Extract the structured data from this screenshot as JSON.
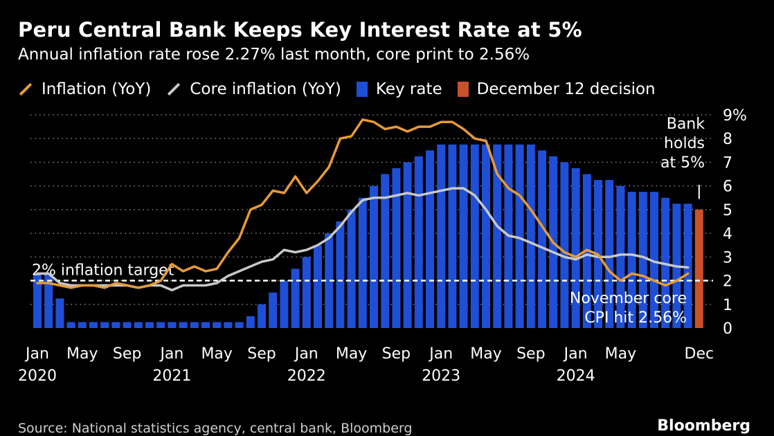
{
  "header": {
    "title": "Peru Central Bank Keeps Key Interest Rate at 5%",
    "subtitle": "Annual inflation rate rose 2.27% last month, core print to 2.56%"
  },
  "legend": {
    "items": [
      {
        "label": "Inflation (YoY)",
        "color": "#e69b38",
        "kind": "line"
      },
      {
        "label": "Core inflation (YoY)",
        "color": "#c8c8c8",
        "kind": "line"
      },
      {
        "label": "Key rate",
        "color": "#1f4fd6",
        "kind": "box"
      },
      {
        "label": "December 12 decision",
        "color": "#c8502a",
        "kind": "box"
      }
    ]
  },
  "annotations": {
    "target_label": "2% inflation target",
    "bank_holds": [
      "Bank",
      "holds",
      "at 5%"
    ],
    "core_note": [
      "November core",
      "CPI hit 2.56%"
    ]
  },
  "footer": {
    "source": "Source: National statistics agency, central bank, Bloomberg",
    "brand": "Bloomberg"
  },
  "chart_data": {
    "type": "bar",
    "x_start": "2020-01",
    "x_end": "2024-12",
    "ylim": [
      0,
      9
    ],
    "y_ticks": [
      "0",
      "1",
      "2",
      "3",
      "4",
      "5",
      "6",
      "7",
      "8",
      "9%"
    ],
    "x_ticks": [
      {
        "month": "Jan",
        "year": "2020"
      },
      {
        "month": "May",
        "year": ""
      },
      {
        "month": "Sep",
        "year": ""
      },
      {
        "month": "Jan",
        "year": "2021"
      },
      {
        "month": "May",
        "year": ""
      },
      {
        "month": "Sep",
        "year": ""
      },
      {
        "month": "Jan",
        "year": "2022"
      },
      {
        "month": "May",
        "year": ""
      },
      {
        "month": "Sep",
        "year": ""
      },
      {
        "month": "Jan",
        "year": "2023"
      },
      {
        "month": "May",
        "year": ""
      },
      {
        "month": "Sep",
        "year": ""
      },
      {
        "month": "Jan",
        "year": "2024"
      },
      {
        "month": "May",
        "year": ""
      },
      {
        "month": "Dec",
        "year": ""
      }
    ],
    "x_tick_index": [
      0,
      4,
      8,
      12,
      16,
      20,
      24,
      28,
      32,
      36,
      40,
      44,
      48,
      52,
      59
    ],
    "target": 2,
    "series": [
      {
        "name": "Key rate",
        "color": "#1f4fd6",
        "values": [
          2.25,
          2.25,
          1.25,
          0.25,
          0.25,
          0.25,
          0.25,
          0.25,
          0.25,
          0.25,
          0.25,
          0.25,
          0.25,
          0.25,
          0.25,
          0.25,
          0.25,
          0.25,
          0.25,
          0.5,
          1.0,
          1.5,
          2.0,
          2.5,
          3.0,
          3.5,
          4.0,
          4.5,
          5.0,
          5.5,
          6.0,
          6.5,
          6.75,
          7.0,
          7.25,
          7.5,
          7.75,
          7.75,
          7.75,
          7.75,
          7.75,
          7.75,
          7.75,
          7.75,
          7.75,
          7.5,
          7.25,
          7.0,
          6.75,
          6.5,
          6.25,
          6.25,
          6.0,
          5.75,
          5.75,
          5.75,
          5.5,
          5.25,
          5.25,
          5.0
        ]
      },
      {
        "name": "December 12 decision",
        "color": "#c8502a",
        "index": 59,
        "value": 5.0
      },
      {
        "name": "Inflation (YoY)",
        "color": "#e69b38",
        "values": [
          1.9,
          1.9,
          1.8,
          1.7,
          1.8,
          1.8,
          1.7,
          1.9,
          1.8,
          1.7,
          1.8,
          2.0,
          2.7,
          2.4,
          2.6,
          2.4,
          2.5,
          3.2,
          3.8,
          5.0,
          5.2,
          5.8,
          5.7,
          6.4,
          5.7,
          6.2,
          6.8,
          8.0,
          8.1,
          8.8,
          8.7,
          8.4,
          8.5,
          8.3,
          8.5,
          8.5,
          8.7,
          8.7,
          8.4,
          8.0,
          7.9,
          6.5,
          5.9,
          5.6,
          5.0,
          4.3,
          3.6,
          3.2,
          3.0,
          3.3,
          3.1,
          2.4,
          2.0,
          2.3,
          2.2,
          2.0,
          1.8,
          2.0,
          2.3
        ]
      },
      {
        "name": "Core inflation (YoY)",
        "color": "#c8c8c8",
        "values": [
          2.3,
          2.3,
          1.9,
          1.8,
          1.8,
          1.8,
          1.8,
          1.8,
          1.8,
          1.7,
          1.8,
          1.8,
          1.6,
          1.8,
          1.8,
          1.8,
          1.9,
          2.2,
          2.4,
          2.6,
          2.8,
          2.9,
          3.3,
          3.2,
          3.3,
          3.5,
          3.8,
          4.3,
          4.9,
          5.4,
          5.5,
          5.5,
          5.6,
          5.7,
          5.6,
          5.7,
          5.8,
          5.9,
          5.9,
          5.6,
          5.0,
          4.3,
          3.9,
          3.8,
          3.6,
          3.4,
          3.2,
          3.0,
          2.9,
          3.1,
          3.0,
          3.0,
          3.1,
          3.1,
          3.0,
          2.8,
          2.7,
          2.6,
          2.56
        ]
      }
    ]
  }
}
